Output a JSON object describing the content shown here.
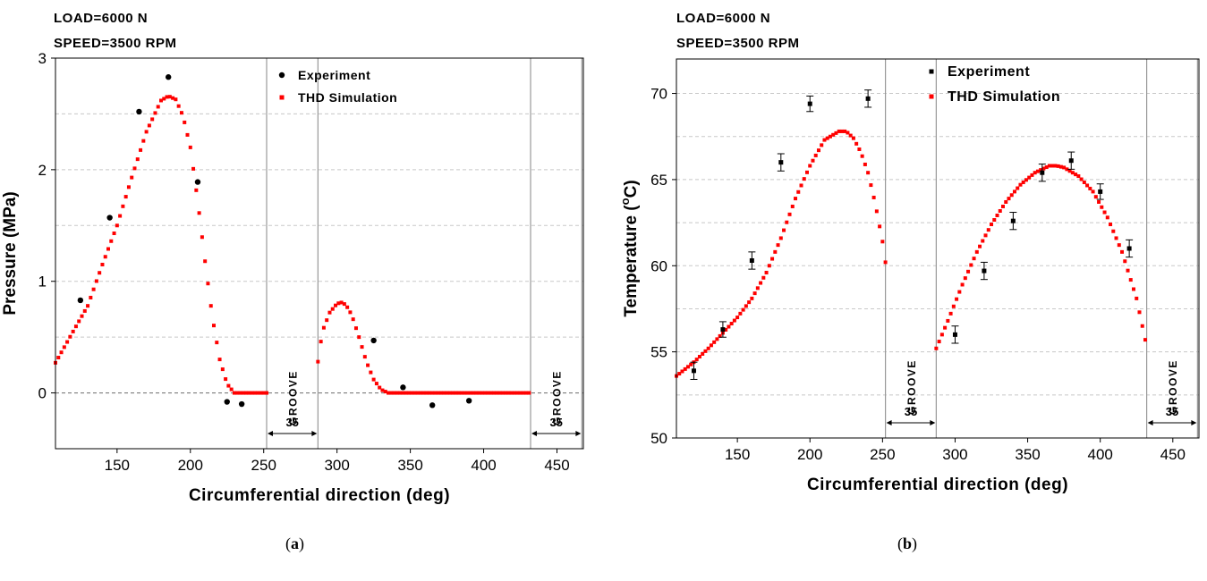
{
  "panels": [
    {
      "load_label": "LOAD=6000 N",
      "speed_label": "SPEED=3500 RPM",
      "caption_open": "(",
      "caption_letter": "a",
      "caption_close": ")"
    },
    {
      "load_label": "LOAD=6000 N",
      "speed_label": "SPEED=3500 RPM",
      "caption_open": "(",
      "caption_letter": "b",
      "caption_close": ")"
    }
  ],
  "chart_data": [
    {
      "type": "scatter",
      "xlabel": "Circumferential direction (deg)",
      "ylabel": "Pressure (MPa)",
      "xlim": [
        108,
        468
      ],
      "ylim": [
        -0.5,
        3
      ],
      "x_ticks": [
        150,
        200,
        250,
        300,
        350,
        400,
        450
      ],
      "y_ticks": [
        0,
        1,
        2,
        3
      ],
      "grid": "horizontal dashed",
      "legend_position": "top-right",
      "colors": {
        "experiment": "#000000",
        "simulation": "#ff0000",
        "groove_line": "#999999"
      },
      "series": [
        {
          "name": "Experiment",
          "marker": "circle",
          "x": [
            125,
            145,
            165,
            185,
            205,
            225,
            235,
            325,
            345,
            365,
            390
          ],
          "y": [
            0.83,
            1.57,
            2.52,
            2.83,
            1.89,
            -0.08,
            -0.1,
            0.47,
            0.05,
            -0.11,
            -0.07
          ]
        },
        {
          "name": "THD Simulation",
          "marker": "square-dotted-line",
          "segments": [
            {
              "x": [
                108,
                120,
                130,
                140,
                150,
                160,
                170,
                180,
                185,
                190,
                195,
                200,
                205,
                210,
                215,
                220,
                225,
                230,
                235,
                252
              ],
              "y": [
                0.27,
                0.55,
                0.78,
                1.15,
                1.5,
                1.93,
                2.34,
                2.62,
                2.66,
                2.63,
                2.48,
                2.2,
                1.72,
                1.18,
                0.68,
                0.3,
                0.08,
                0.0,
                0.0,
                0.0
              ]
            },
            {
              "x": [
                287,
                290,
                295,
                300,
                303,
                306,
                310,
                315,
                320,
                325,
                330,
                335,
                340,
                360,
                400,
                432
              ],
              "y": [
                0.28,
                0.55,
                0.72,
                0.8,
                0.81,
                0.79,
                0.7,
                0.5,
                0.28,
                0.12,
                0.03,
                0.0,
                0.0,
                0.0,
                0.0,
                0.0
              ]
            }
          ]
        }
      ],
      "grooves": [
        {
          "x_start": 252,
          "x_end": 287,
          "label": "GROOVE",
          "width_label": "35"
        },
        {
          "x_start": 432,
          "x_end": 467,
          "label": "GROOVE",
          "width_label": "35"
        }
      ]
    },
    {
      "type": "scatter",
      "xlabel": "Circumferential direction (deg)",
      "ylabel_main": "Temperature (",
      "ylabel_sup": "o",
      "ylabel_unit": "C)",
      "xlim": [
        108,
        468
      ],
      "ylim": [
        50,
        72
      ],
      "x_ticks": [
        150,
        200,
        250,
        300,
        350,
        400,
        450
      ],
      "y_ticks": [
        50,
        55,
        60,
        65,
        70
      ],
      "grid": "horizontal dashed",
      "legend_position": "top-center",
      "colors": {
        "experiment": "#000000",
        "simulation": "#ff0000",
        "groove_line": "#999999"
      },
      "series": [
        {
          "name": "Experiment",
          "marker": "square-with-error-bars",
          "x": [
            120,
            140,
            160,
            180,
            200,
            240,
            300,
            320,
            340,
            360,
            380,
            400,
            420
          ],
          "y": [
            53.9,
            56.3,
            60.3,
            66.0,
            69.4,
            69.7,
            56.0,
            59.7,
            62.6,
            65.4,
            66.1,
            64.3,
            61.0
          ],
          "error": [
            0.5,
            0.45,
            0.5,
            0.5,
            0.45,
            0.5,
            0.5,
            0.5,
            0.5,
            0.5,
            0.5,
            0.45,
            0.5
          ]
        },
        {
          "name": "THD Simulation",
          "marker": "square-dotted-line",
          "segments": [
            {
              "x": [
                108,
                120,
                130,
                140,
                150,
                160,
                170,
                180,
                190,
                200,
                210,
                220,
                225,
                230,
                235,
                240,
                245,
                250,
                252
              ],
              "y": [
                53.6,
                54.4,
                55.2,
                56.1,
                57.0,
                58.1,
                59.6,
                61.6,
                63.9,
                65.8,
                67.3,
                67.8,
                67.8,
                67.4,
                66.6,
                65.4,
                63.6,
                61.4,
                60.2
              ]
            },
            {
              "x": [
                287,
                295,
                305,
                315,
                325,
                335,
                345,
                355,
                365,
                370,
                375,
                385,
                395,
                405,
                415,
                425,
                432
              ],
              "y": [
                55.2,
                56.8,
                58.9,
                60.8,
                62.4,
                63.7,
                64.7,
                65.4,
                65.8,
                65.8,
                65.7,
                65.2,
                64.3,
                62.8,
                60.8,
                58.1,
                55.3
              ]
            }
          ]
        }
      ],
      "grooves": [
        {
          "x_start": 252,
          "x_end": 287,
          "label": "GROOVE",
          "width_label": "35"
        },
        {
          "x_start": 432,
          "x_end": 467,
          "label": "GROOVE",
          "width_label": "35"
        }
      ]
    }
  ]
}
